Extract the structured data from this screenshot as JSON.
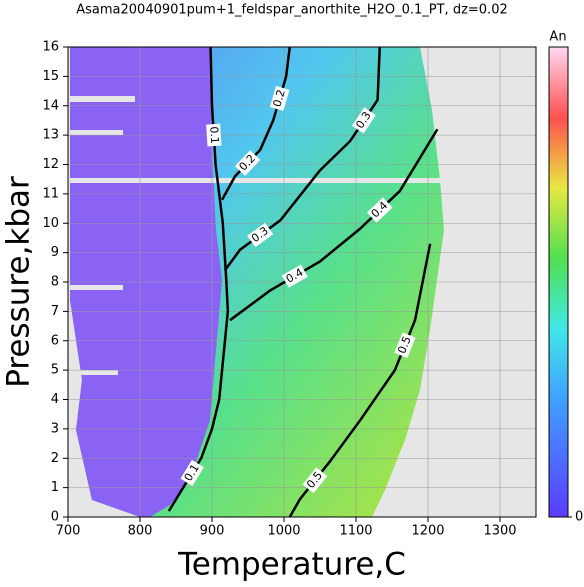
{
  "chart_data": {
    "type": "contour",
    "title": "Asama20040901pum+1_feldspar_anorthite_H2O_0.1_PT, dz=0.02",
    "x_label": "Temperature,C",
    "y_label": "Pressure,kbar",
    "xlim": [
      700,
      1350
    ],
    "xticks": [
      700,
      800,
      900,
      1000,
      1100,
      1200,
      1300
    ],
    "ylim": [
      0,
      16
    ],
    "yticks": [
      0,
      1,
      2,
      3,
      4,
      5,
      6,
      7,
      8,
      9,
      10,
      11,
      12,
      13,
      14,
      15,
      16
    ],
    "grid": true,
    "colorbar": {
      "label": "An",
      "clim": [
        0,
        1
      ],
      "ticks": [
        0
      ]
    },
    "contours": [
      {
        "level": 0.1,
        "x": [
          898,
          900,
          905,
          915,
          920,
          922,
          918,
          910,
          900,
          885,
          860,
          840
        ],
        "y": [
          16,
          14,
          12,
          10,
          8,
          7,
          6,
          4,
          3,
          2,
          1,
          0.2
        ]
      },
      {
        "level": 0.2,
        "x": [
          1008,
          1003,
          985,
          967,
          932,
          914
        ],
        "y": [
          16,
          15,
          13.5,
          12.5,
          11.6,
          10.8
        ]
      },
      {
        "level": 0.3,
        "x": [
          1133,
          1130,
          1092,
          1050,
          995,
          939,
          918
        ],
        "y": [
          16,
          14.2,
          12.8,
          11.8,
          10.1,
          9.1,
          8.4
        ]
      },
      {
        "level": 0.4,
        "x": [
          1213,
          1161,
          1105,
          1050,
          980,
          925
        ],
        "y": [
          13.2,
          11.1,
          9.8,
          8.7,
          7.7,
          6.7
        ]
      },
      {
        "level": 0.5,
        "x": [
          1203,
          1182,
          1154,
          1106,
          1064,
          1022,
          1008
        ],
        "y": [
          9.3,
          6.7,
          5.0,
          3.3,
          1.9,
          0.6,
          0
        ]
      }
    ]
  }
}
